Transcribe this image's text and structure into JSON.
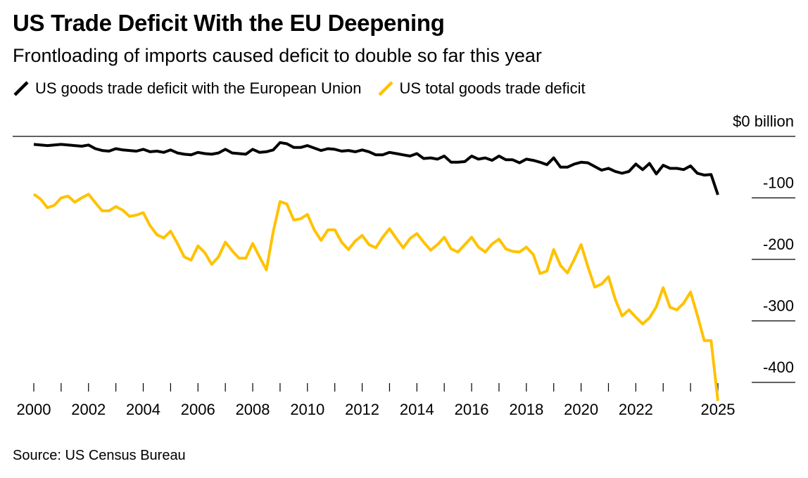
{
  "title": "US Trade Deficit With the EU Deepening",
  "subtitle": "Frontloading of imports caused deficit to double so far this year",
  "source": "Source: US Census Bureau",
  "colors": {
    "eu": "#000000",
    "total": "#FFC200",
    "axis": "#000000"
  },
  "legend": [
    {
      "label": "US goods trade deficit with the European Union",
      "color": "#000000"
    },
    {
      "label": "US total goods trade deficit",
      "color": "#FFC200"
    }
  ],
  "chart_data": {
    "type": "line",
    "title": "US Trade Deficit With the EU Deepening",
    "subtitle": "Frontloading of imports caused deficit to double so far this year",
    "xlabel": "",
    "ylabel": "",
    "unit": "billion",
    "xlim": [
      2000,
      2025.0
    ],
    "ylim": [
      -430,
      0
    ],
    "x_ticks": [
      2000,
      2002,
      2004,
      2006,
      2008,
      2010,
      2012,
      2014,
      2016,
      2018,
      2020,
      2022,
      2025
    ],
    "x_tick_labels": [
      "2000",
      "2002",
      "2004",
      "2006",
      "2008",
      "2010",
      "2012",
      "2014",
      "2016",
      "2018",
      "2020",
      "2022",
      "2025"
    ],
    "y_ticks": [
      0,
      -100,
      -200,
      -300,
      -400
    ],
    "y_tick_labels": [
      "$0 billion",
      "-100",
      "-200",
      "-300",
      "-400"
    ],
    "grid": false,
    "legend_position": "top-left",
    "series": [
      {
        "name": "US goods trade deficit with the European Union",
        "color": "#000000",
        "x": [
          2000,
          2000.25,
          2000.5,
          2000.75,
          2001,
          2001.25,
          2001.5,
          2001.75,
          2002,
          2002.25,
          2002.5,
          2002.75,
          2003,
          2003.25,
          2003.5,
          2003.75,
          2004,
          2004.25,
          2004.5,
          2004.75,
          2005,
          2005.25,
          2005.5,
          2005.75,
          2006,
          2006.25,
          2006.5,
          2006.75,
          2007,
          2007.25,
          2007.5,
          2007.75,
          2008,
          2008.25,
          2008.5,
          2008.75,
          2009,
          2009.25,
          2009.5,
          2009.75,
          2010,
          2010.25,
          2010.5,
          2010.75,
          2011,
          2011.25,
          2011.5,
          2011.75,
          2012,
          2012.25,
          2012.5,
          2012.75,
          2013,
          2013.25,
          2013.5,
          2013.75,
          2014,
          2014.25,
          2014.5,
          2014.75,
          2015,
          2015.25,
          2015.5,
          2015.75,
          2016,
          2016.25,
          2016.5,
          2016.75,
          2017,
          2017.25,
          2017.5,
          2017.75,
          2018,
          2018.25,
          2018.5,
          2018.75,
          2019,
          2019.25,
          2019.5,
          2019.75,
          2020,
          2020.25,
          2020.5,
          2020.75,
          2021,
          2021.25,
          2021.5,
          2021.75,
          2022,
          2022.25,
          2022.5,
          2022.75,
          2023,
          2023.25,
          2023.5,
          2023.75,
          2024,
          2024.25,
          2024.5,
          2024.75,
          2025
        ],
        "y": [
          -13,
          -14,
          -15,
          -14,
          -13,
          -14,
          -15,
          -16,
          -14,
          -20,
          -23,
          -24,
          -20,
          -22,
          -23,
          -24,
          -21,
          -25,
          -24,
          -26,
          -22,
          -27,
          -29,
          -30,
          -26,
          -28,
          -29,
          -27,
          -21,
          -27,
          -28,
          -29,
          -21,
          -26,
          -25,
          -22,
          -10,
          -12,
          -18,
          -18,
          -15,
          -19,
          -23,
          -20,
          -21,
          -24,
          -23,
          -25,
          -22,
          -25,
          -30,
          -30,
          -26,
          -28,
          -30,
          -32,
          -28,
          -36,
          -35,
          -37,
          -32,
          -42,
          -42,
          -41,
          -32,
          -37,
          -35,
          -39,
          -32,
          -38,
          -38,
          -43,
          -37,
          -39,
          -42,
          -46,
          -35,
          -50,
          -50,
          -45,
          -42,
          -43,
          -49,
          -55,
          -52,
          -57,
          -60,
          -57,
          -45,
          -54,
          -44,
          -61,
          -47,
          -52,
          -52,
          -54,
          -48,
          -60,
          -63,
          -62,
          -95
        ]
      },
      {
        "name": "US total goods trade deficit",
        "color": "#FFC200",
        "x": [
          2000,
          2000.25,
          2000.5,
          2000.75,
          2001,
          2001.25,
          2001.5,
          2001.75,
          2002,
          2002.25,
          2002.5,
          2002.75,
          2003,
          2003.25,
          2003.5,
          2003.75,
          2004,
          2004.25,
          2004.5,
          2004.75,
          2005,
          2005.25,
          2005.5,
          2005.75,
          2006,
          2006.25,
          2006.5,
          2006.75,
          2007,
          2007.25,
          2007.5,
          2007.75,
          2008,
          2008.25,
          2008.5,
          2008.75,
          2009,
          2009.25,
          2009.5,
          2009.75,
          2010,
          2010.25,
          2010.5,
          2010.75,
          2011,
          2011.25,
          2011.5,
          2011.75,
          2012,
          2012.25,
          2012.5,
          2012.75,
          2013,
          2013.25,
          2013.5,
          2013.75,
          2014,
          2014.25,
          2014.5,
          2014.75,
          2015,
          2015.25,
          2015.5,
          2015.75,
          2016,
          2016.25,
          2016.5,
          2016.75,
          2017,
          2017.25,
          2017.5,
          2017.75,
          2018,
          2018.25,
          2018.5,
          2018.75,
          2019,
          2019.25,
          2019.5,
          2019.75,
          2020,
          2020.25,
          2020.5,
          2020.75,
          2021,
          2021.25,
          2021.5,
          2021.75,
          2022,
          2022.25,
          2022.5,
          2022.75,
          2023,
          2023.25,
          2023.5,
          2023.75,
          2024,
          2024.25,
          2024.5,
          2024.75,
          2025
        ],
        "y": [
          -94,
          -102,
          -116,
          -112,
          -100,
          -97,
          -107,
          -100,
          -94,
          -108,
          -121,
          -121,
          -114,
          -120,
          -130,
          -128,
          -124,
          -145,
          -160,
          -165,
          -154,
          -174,
          -196,
          -201,
          -178,
          -189,
          -208,
          -196,
          -172,
          -186,
          -198,
          -198,
          -174,
          -196,
          -217,
          -155,
          -106,
          -110,
          -136,
          -134,
          -127,
          -152,
          -169,
          -152,
          -152,
          -172,
          -184,
          -170,
          -161,
          -176,
          -181,
          -164,
          -150,
          -166,
          -181,
          -166,
          -158,
          -172,
          -185,
          -176,
          -164,
          -183,
          -188,
          -176,
          -164,
          -180,
          -188,
          -175,
          -167,
          -183,
          -187,
          -188,
          -180,
          -192,
          -223,
          -219,
          -184,
          -210,
          -222,
          -200,
          -176,
          -212,
          -245,
          -240,
          -228,
          -265,
          -292,
          -282,
          -294,
          -305,
          -295,
          -277,
          -246,
          -278,
          -282,
          -271,
          -253,
          -291,
          -332,
          -332,
          -430
        ]
      }
    ]
  }
}
